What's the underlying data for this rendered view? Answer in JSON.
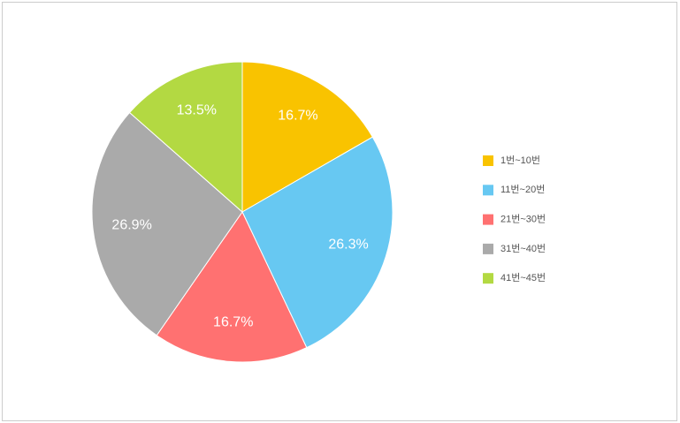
{
  "chart_data": {
    "type": "pie",
    "categories": [
      "1번~10번",
      "11번~20번",
      "21번~30번",
      "31번~40번",
      "41번~45번"
    ],
    "values": [
      16.7,
      26.3,
      16.7,
      26.9,
      13.5
    ],
    "value_labels": [
      "16.7%",
      "26.3%",
      "16.7%",
      "26.9%",
      "13.5%"
    ],
    "colors": [
      "#f9c300",
      "#67c8f2",
      "#ff7171",
      "#aaaaaa",
      "#b3d942"
    ],
    "legend": "right"
  }
}
